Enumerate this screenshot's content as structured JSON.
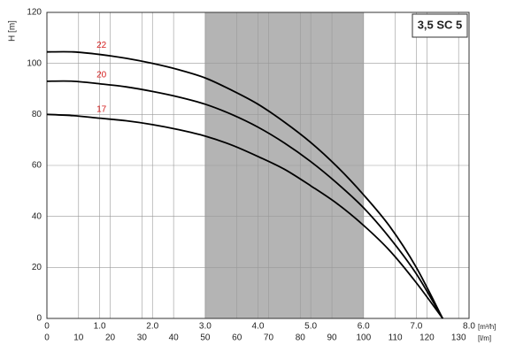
{
  "chart_data": {
    "type": "line",
    "title": "3,5 SC 5",
    "y_label": "H [m]",
    "x_label": "[m³/h]",
    "x2_label": "[l/m]",
    "x": [
      0,
      0.5,
      1.0,
      1.5,
      2.0,
      2.5,
      3.0,
      3.5,
      4.0,
      4.5,
      5.0,
      5.5,
      6.0,
      6.5,
      7.0,
      7.5
    ],
    "series": [
      {
        "name": "22",
        "color": "#000000",
        "label_color": "#d62020",
        "values": [
          104.5,
          104.5,
          103.5,
          102,
          100,
          97.5,
          94.3,
          89.5,
          84,
          77,
          69,
          59.5,
          48.5,
          36,
          20,
          0
        ]
      },
      {
        "name": "20",
        "color": "#000000",
        "label_color": "#d62020",
        "values": [
          93,
          93,
          92,
          90.8,
          89,
          86.8,
          84,
          80,
          75,
          68.8,
          61.5,
          53,
          43.4,
          31.5,
          17.5,
          0
        ]
      },
      {
        "name": "17",
        "color": "#000000",
        "label_color": "#d62020",
        "values": [
          80,
          79.5,
          78.5,
          77.5,
          76,
          74,
          71.5,
          68,
          63.5,
          58.5,
          52,
          45,
          36.5,
          26.5,
          14,
          0
        ]
      }
    ],
    "xlim": [
      0,
      8.0
    ],
    "x2lim": [
      0,
      133.3
    ],
    "ylim": [
      0,
      120
    ],
    "xticks": [
      0,
      {
        "value": 1,
        "label": "1.0"
      },
      {
        "value": 2,
        "label": "2.0"
      },
      {
        "value": 3,
        "label": "3.0"
      },
      {
        "value": 4,
        "label": "4.0"
      },
      {
        "value": 5,
        "label": "5.0"
      },
      {
        "value": 6,
        "label": "6.0"
      },
      {
        "value": 7,
        "label": "7.0"
      },
      {
        "value": 8,
        "label": "8.0"
      }
    ],
    "x2ticks": [
      0,
      10,
      20,
      30,
      40,
      50,
      60,
      70,
      80,
      90,
      100,
      110,
      120,
      130
    ],
    "yticks": [
      0,
      20,
      40,
      60,
      80,
      100,
      120
    ],
    "shade": [
      3.0,
      6.0
    ],
    "shade_color": "#b4b4b4",
    "grid": true
  }
}
